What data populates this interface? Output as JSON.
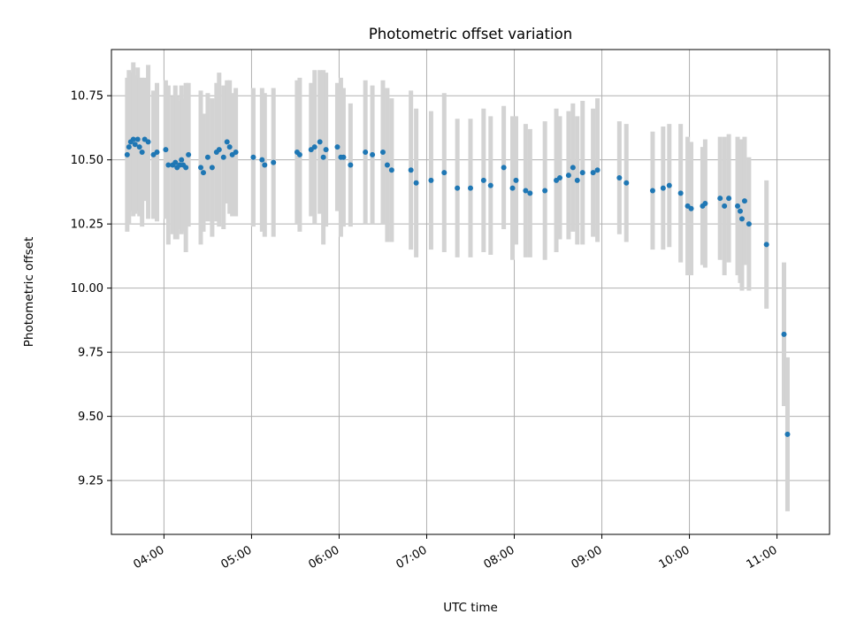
{
  "chart_data": {
    "type": "scatter",
    "title": "Photometric offset variation",
    "xlabel": "UTC time",
    "ylabel": "Photometric offset",
    "x_unit": "hours UTC",
    "xlim": [
      3.4,
      11.6
    ],
    "ylim": [
      9.04,
      10.93
    ],
    "grid": true,
    "legend": "none",
    "x_ticks": [
      {
        "value": 4,
        "label": "04:00"
      },
      {
        "value": 5,
        "label": "05:00"
      },
      {
        "value": 6,
        "label": "06:00"
      },
      {
        "value": 7,
        "label": "07:00"
      },
      {
        "value": 8,
        "label": "08:00"
      },
      {
        "value": 9,
        "label": "09:00"
      },
      {
        "value": 10,
        "label": "10:00"
      },
      {
        "value": 11,
        "label": "11:00"
      }
    ],
    "y_ticks": [
      {
        "value": 9.25,
        "label": "9.25"
      },
      {
        "value": 9.5,
        "label": "9.50"
      },
      {
        "value": 9.75,
        "label": "9.75"
      },
      {
        "value": 10.0,
        "label": "10.00"
      },
      {
        "value": 10.25,
        "label": "10.25"
      },
      {
        "value": 10.5,
        "label": "10.50"
      },
      {
        "value": 10.75,
        "label": "10.75"
      }
    ],
    "colors": {
      "point": "#1f77b4",
      "errorbar": "#d3d3d3",
      "grid": "#b0b0b0",
      "axes": "#000000"
    },
    "series": [
      {
        "x": [
          3.58,
          3.6,
          3.62,
          3.65,
          3.67,
          3.7,
          3.72,
          3.75,
          3.78,
          3.82,
          3.88,
          3.92,
          4.02,
          4.05,
          4.1,
          4.13,
          4.15,
          4.18,
          4.2,
          4.22,
          4.25,
          4.28,
          4.42,
          4.45,
          4.5,
          4.55,
          4.6,
          4.63,
          4.68,
          4.72,
          4.75,
          4.78,
          4.82,
          5.02,
          5.12,
          5.15,
          5.25,
          5.52,
          5.55,
          5.68,
          5.72,
          5.78,
          5.82,
          5.85,
          5.98,
          6.02,
          6.05,
          6.13,
          6.3,
          6.38,
          6.5,
          6.55,
          6.6,
          6.82,
          6.88,
          7.05,
          7.2,
          7.35,
          7.5,
          7.65,
          7.73,
          7.88,
          7.98,
          8.02,
          8.13,
          8.18,
          8.35,
          8.48,
          8.52,
          8.62,
          8.67,
          8.72,
          8.78,
          8.9,
          8.95,
          9.2,
          9.28,
          9.58,
          9.7,
          9.77,
          9.9,
          9.98,
          10.02,
          10.15,
          10.18,
          10.35,
          10.4,
          10.45,
          10.55,
          10.58,
          10.6,
          10.63,
          10.68,
          10.88,
          11.08,
          11.12
        ],
        "y": [
          10.52,
          10.55,
          10.57,
          10.58,
          10.56,
          10.58,
          10.55,
          10.53,
          10.58,
          10.57,
          10.52,
          10.53,
          10.54,
          10.48,
          10.48,
          10.49,
          10.47,
          10.48,
          10.5,
          10.48,
          10.47,
          10.52,
          10.47,
          10.45,
          10.51,
          10.47,
          10.53,
          10.54,
          10.51,
          10.57,
          10.55,
          10.52,
          10.53,
          10.51,
          10.5,
          10.48,
          10.49,
          10.53,
          10.52,
          10.54,
          10.55,
          10.57,
          10.51,
          10.54,
          10.55,
          10.51,
          10.51,
          10.48,
          10.53,
          10.52,
          10.53,
          10.48,
          10.46,
          10.46,
          10.41,
          10.42,
          10.45,
          10.39,
          10.39,
          10.42,
          10.4,
          10.47,
          10.39,
          10.42,
          10.38,
          10.37,
          10.38,
          10.42,
          10.43,
          10.44,
          10.47,
          10.42,
          10.45,
          10.45,
          10.46,
          10.43,
          10.41,
          10.38,
          10.39,
          10.4,
          10.37,
          10.32,
          10.31,
          10.32,
          10.33,
          10.35,
          10.32,
          10.35,
          10.32,
          10.3,
          10.27,
          10.34,
          10.25,
          10.17,
          9.82,
          9.43
        ],
        "yerr": [
          0.3,
          0.3,
          0.27,
          0.3,
          0.27,
          0.28,
          0.27,
          0.29,
          0.24,
          0.3,
          0.25,
          0.27,
          0.27,
          0.31,
          0.27,
          0.3,
          0.28,
          0.25,
          0.29,
          0.26,
          0.33,
          0.28,
          0.3,
          0.23,
          0.25,
          0.27,
          0.27,
          0.3,
          0.28,
          0.24,
          0.26,
          0.24,
          0.25,
          0.27,
          0.28,
          0.28,
          0.29,
          0.28,
          0.3,
          0.26,
          0.3,
          0.28,
          0.34,
          0.3,
          0.25,
          0.31,
          0.27,
          0.24,
          0.28,
          0.27,
          0.28,
          0.3,
          0.28,
          0.31,
          0.29,
          0.27,
          0.31,
          0.27,
          0.27,
          0.28,
          0.27,
          0.24,
          0.28,
          0.25,
          0.26,
          0.25,
          0.27,
          0.28,
          0.24,
          0.25,
          0.25,
          0.25,
          0.28,
          0.25,
          0.28,
          0.22,
          0.23,
          0.23,
          0.24,
          0.24,
          0.27,
          0.27,
          0.26,
          0.23,
          0.25,
          0.24,
          0.27,
          0.25,
          0.27,
          0.28,
          0.28,
          0.25,
          0.26,
          0.25,
          0.28,
          0.3
        ]
      }
    ]
  }
}
